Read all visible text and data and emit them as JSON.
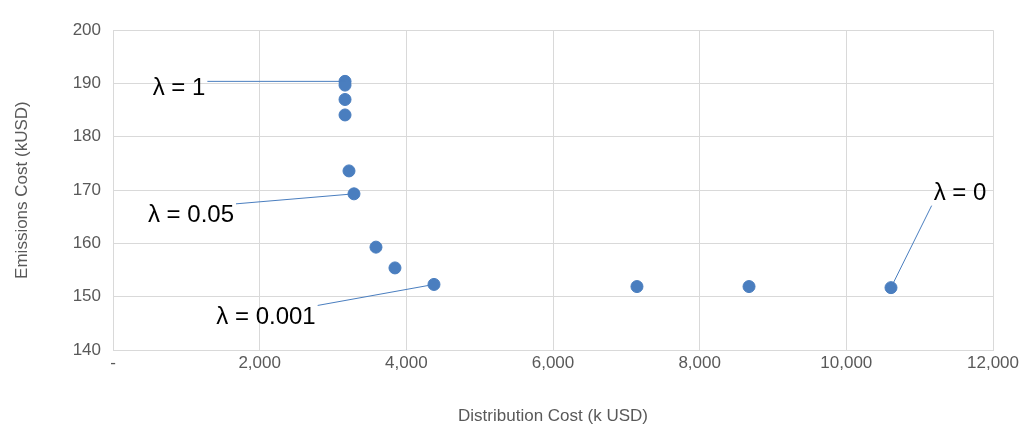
{
  "chart_data": {
    "type": "scatter",
    "xlabel": "Distribution Cost (k USD)",
    "ylabel": "Emissions Cost (kUSD)",
    "x": [
      3164,
      3164,
      3164,
      3164,
      3218,
      3286,
      3586,
      3845,
      4377,
      7145,
      8673,
      10609
    ],
    "values": [
      190.4,
      189.7,
      187.0,
      184.1,
      173.6,
      169.3,
      159.3,
      155.4,
      152.3,
      151.9,
      151.9,
      151.7
    ],
    "color": "#4a7ebf",
    "marker": "circle",
    "grid": true,
    "xlim": [
      0,
      12000
    ],
    "xticks": [
      {
        "value": 0,
        "label": "-"
      },
      {
        "value": 2000,
        "label": "2,000"
      },
      {
        "value": 4000,
        "label": "4,000"
      },
      {
        "value": 6000,
        "label": "6,000"
      },
      {
        "value": 8000,
        "label": "8,000"
      },
      {
        "value": 10000,
        "label": "10,000"
      },
      {
        "value": 12000,
        "label": "12,000"
      }
    ],
    "ylim": [
      140,
      200
    ],
    "yticks": [
      140,
      150,
      160,
      170,
      180,
      190,
      200
    ],
    "annotations": [
      {
        "text": "λ = 1",
        "x": 3164,
        "y": 190.4
      },
      {
        "text": "λ = 0.05",
        "x": 3286,
        "y": 169.3
      },
      {
        "text": "λ = 0.001",
        "x": 4377,
        "y": 152.3
      },
      {
        "text": "λ = 0",
        "x": 10609,
        "y": 151.7
      }
    ]
  }
}
